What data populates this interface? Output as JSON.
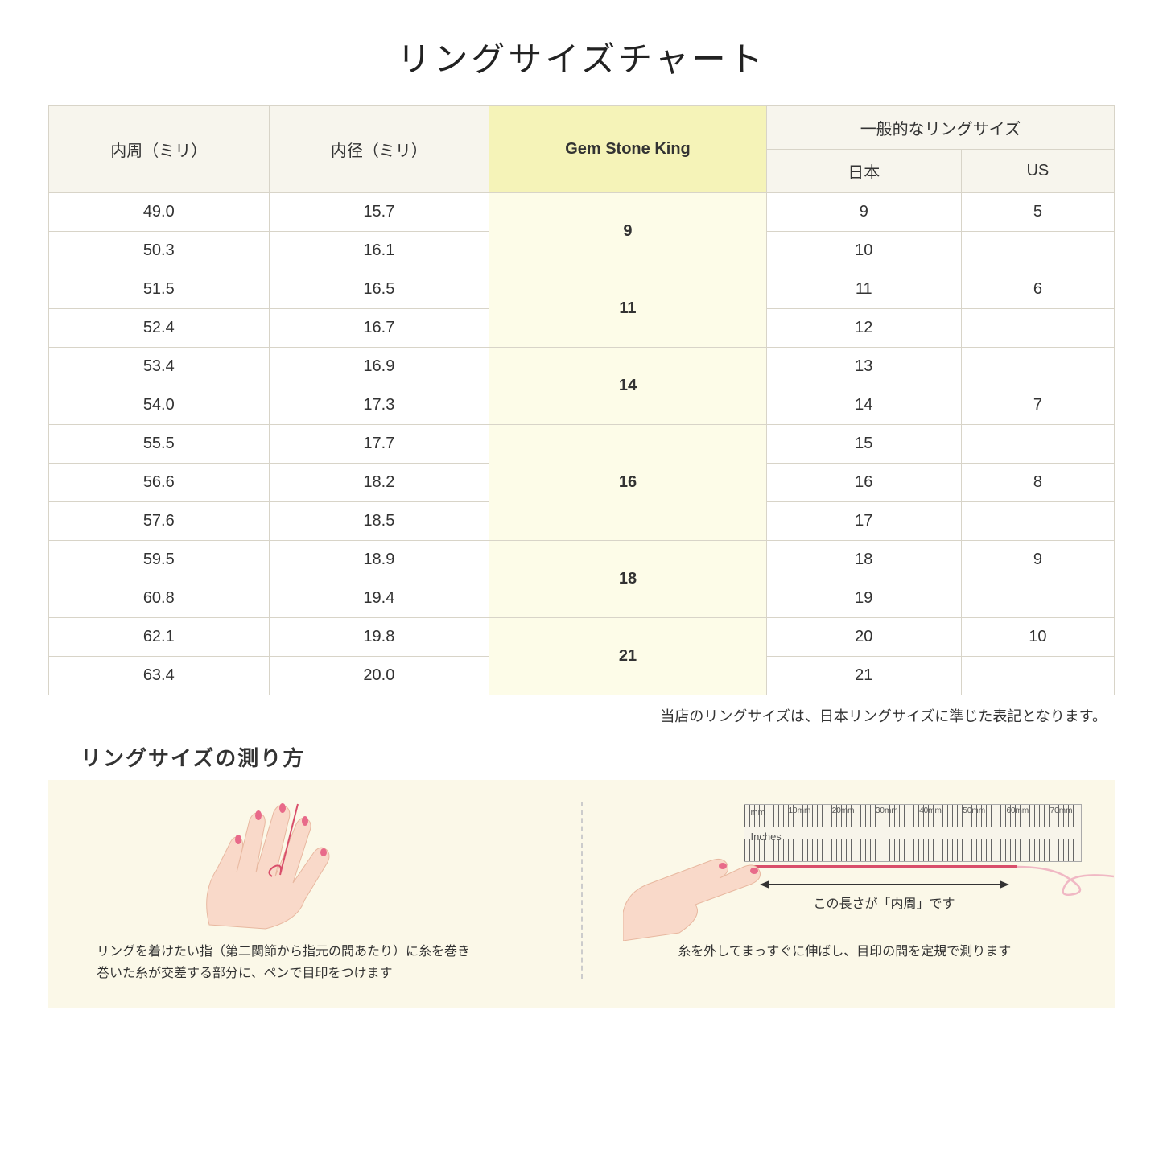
{
  "title": "リングサイズチャート",
  "table": {
    "headers": {
      "circumference": "内周（ミリ）",
      "diameter": "内径（ミリ）",
      "gsk": "Gem Stone King",
      "general": "一般的なリングサイズ",
      "japan": "日本",
      "us": "US"
    },
    "groups": [
      {
        "gsk": "9",
        "rows": [
          {
            "c": "49.0",
            "d": "15.7",
            "jp": "9",
            "us": "5"
          },
          {
            "c": "50.3",
            "d": "16.1",
            "jp": "10",
            "us": ""
          }
        ]
      },
      {
        "gsk": "11",
        "rows": [
          {
            "c": "51.5",
            "d": "16.5",
            "jp": "11",
            "us": "6"
          },
          {
            "c": "52.4",
            "d": "16.7",
            "jp": "12",
            "us": ""
          }
        ]
      },
      {
        "gsk": "14",
        "rows": [
          {
            "c": "53.4",
            "d": "16.9",
            "jp": "13",
            "us": ""
          },
          {
            "c": "54.0",
            "d": "17.3",
            "jp": "14",
            "us": "7"
          }
        ]
      },
      {
        "gsk": "16",
        "rows": [
          {
            "c": "55.5",
            "d": "17.7",
            "jp": "15",
            "us": ""
          },
          {
            "c": "56.6",
            "d": "18.2",
            "jp": "16",
            "us": "8"
          },
          {
            "c": "57.6",
            "d": "18.5",
            "jp": "17",
            "us": ""
          }
        ]
      },
      {
        "gsk": "18",
        "rows": [
          {
            "c": "59.5",
            "d": "18.9",
            "jp": "18",
            "us": "9"
          },
          {
            "c": "60.8",
            "d": "19.4",
            "jp": "19",
            "us": ""
          }
        ]
      },
      {
        "gsk": "21",
        "rows": [
          {
            "c": "62.1",
            "d": "19.8",
            "jp": "20",
            "us": "10"
          },
          {
            "c": "63.4",
            "d": "20.0",
            "jp": "21",
            "us": ""
          }
        ]
      }
    ]
  },
  "note": "当店のリングサイズは、日本リングサイズに準じた表記となります。",
  "subtitle": "リングサイズの測り方",
  "panel_left": {
    "caption_line1": "リングを着けたい指（第二関節から指元の間あたり）に糸を巻き",
    "caption_line2": "巻いた糸が交差する部分に、ペンで目印をつけます"
  },
  "panel_right": {
    "ruler_mm": "mm",
    "ruler_inches": "Inches",
    "ruler_marks": [
      "10mm",
      "20mm",
      "30mm",
      "40mm",
      "50mm",
      "60mm",
      "70mm"
    ],
    "arrow_label": "この長さが「内周」です",
    "caption": "糸を外してまっすぐに伸ばし、目印の間を定規で測ります"
  },
  "colors": {
    "header_bg": "#f7f5ed",
    "gsk_header_bg": "#f5f3b8",
    "gsk_cell_bg": "#fdfce8",
    "border": "#d8d4c8",
    "instructions_bg": "#fbf8e8",
    "skin": "#f9d9c9",
    "nail": "#e86a8a",
    "thread": "#d94f6b"
  }
}
